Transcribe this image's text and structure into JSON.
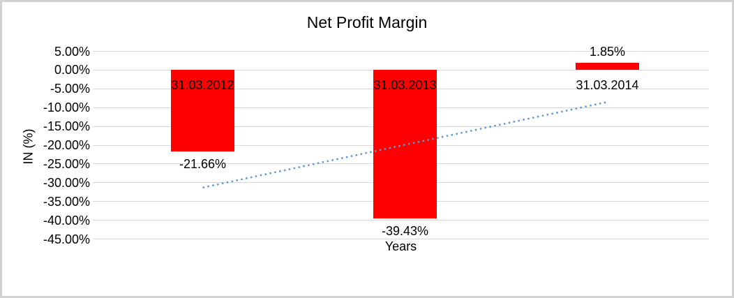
{
  "window": {
    "background_color": "#ffffff",
    "frame_border_color": "#d2d2d2"
  },
  "chart_data": {
    "type": "bar",
    "title": "Net Profit Margin",
    "xlabel": "Years",
    "ylabel": "IN (%)",
    "categories": [
      "31.03.2012",
      "31.03.2013",
      "31.03.2014"
    ],
    "values": [
      -21.66,
      -39.43,
      1.85
    ],
    "data_labels": [
      "-21.66%",
      "-39.43%",
      "1.85%"
    ],
    "y_ticks": [
      {
        "label": "5.00%",
        "value": 5
      },
      {
        "label": "0.00%",
        "value": 0
      },
      {
        "label": "-5.00%",
        "value": -5
      },
      {
        "label": "-10.00%",
        "value": -10
      },
      {
        "label": "-15.00%",
        "value": -15
      },
      {
        "label": "-20.00%",
        "value": -20
      },
      {
        "label": "-25.00%",
        "value": -25
      },
      {
        "label": "-30.00%",
        "value": -30
      },
      {
        "label": "-35.00%",
        "value": -35
      },
      {
        "label": "-40.00%",
        "value": -40
      },
      {
        "label": "-45.00%",
        "value": -45
      }
    ],
    "ylim": [
      -45,
      5
    ],
    "grid": true,
    "legend": false,
    "bar_color": "#ff0000",
    "gridline_color": "#d9d9d9",
    "trendline": {
      "type": "linear",
      "style": "dotted",
      "color": "#5b9bd5",
      "start_value": -31.3,
      "end_value": -8.5
    }
  }
}
